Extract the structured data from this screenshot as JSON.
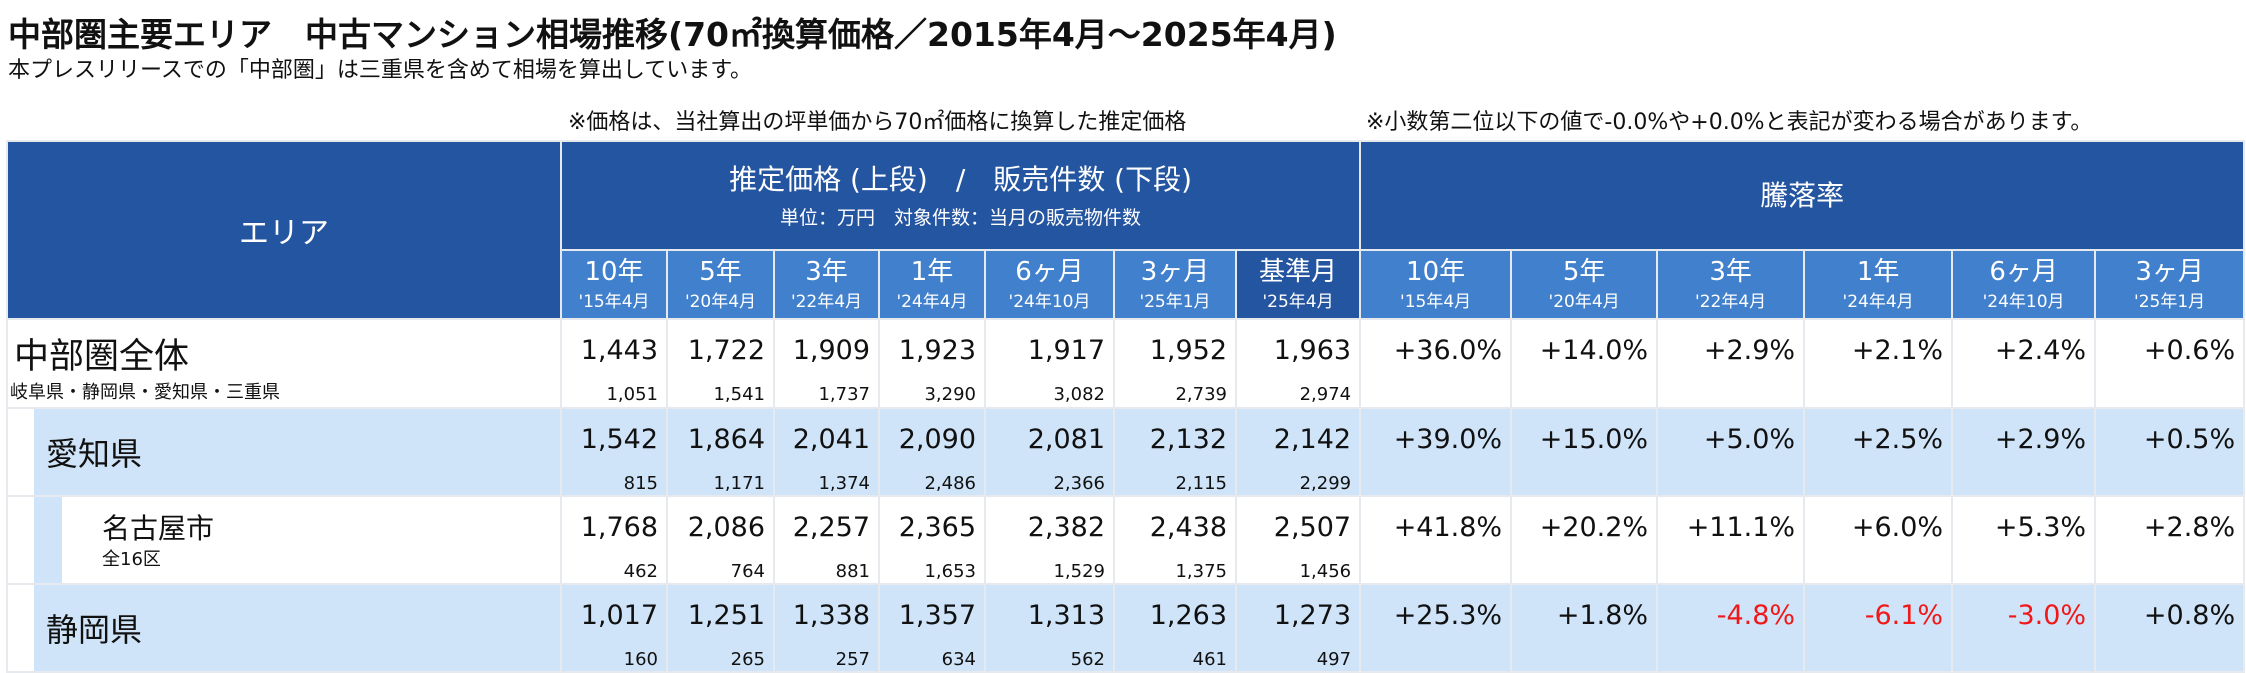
{
  "title": "中部圏主要エリア　中古マンション相場推移(70㎡換算価格／2015年4月～2025年4月)",
  "subtitle": "本プレスリリースでの「中部圏」は三重県を含めて相場を算出しています。",
  "note_left": "※価格は、当社算出の坪単価から70㎡価格に換算した推定価格",
  "note_right": "※小数第二位以下の値で-0.0%や+0.0%と表記が変わる場合があります。",
  "header": {
    "area": "エリア",
    "price_title": "推定価格 (上段)　/　販売件数 (下段)",
    "price_unit": "単位：万円　対象件数：当月の販売物件数",
    "rate_title": "騰落率",
    "price_cols": [
      {
        "label": "10年",
        "date": "'15年4月"
      },
      {
        "label": "5年",
        "date": "'20年4月"
      },
      {
        "label": "3年",
        "date": "'22年4月"
      },
      {
        "label": "1年",
        "date": "'24年4月"
      },
      {
        "label": "6ヶ月",
        "date": "'24年10月"
      },
      {
        "label": "3ヶ月",
        "date": "'25年1月"
      },
      {
        "label": "基準月",
        "date": "'25年4月"
      }
    ],
    "rate_cols": [
      {
        "label": "10年",
        "date": "'15年4月"
      },
      {
        "label": "5年",
        "date": "'20年4月"
      },
      {
        "label": "3年",
        "date": "'22年4月"
      },
      {
        "label": "1年",
        "date": "'24年4月"
      },
      {
        "label": "6ヶ月",
        "date": "'24年10月"
      },
      {
        "label": "3ヶ月",
        "date": "'25年1月"
      }
    ]
  },
  "rows": [
    {
      "name": "中部圏全体",
      "sub": "岐阜県・静岡県・愛知県・三重県",
      "prices": [
        "1,443",
        "1,722",
        "1,909",
        "1,923",
        "1,917",
        "1,952",
        "1,963"
      ],
      "counts": [
        "1,051",
        "1,541",
        "1,737",
        "3,290",
        "3,082",
        "2,739",
        "2,974"
      ],
      "rates": [
        "+36.0%",
        "+14.0%",
        "+2.9%",
        "+2.1%",
        "+2.4%",
        "+0.6%"
      ]
    },
    {
      "name": "愛知県",
      "sub": "",
      "prices": [
        "1,542",
        "1,864",
        "2,041",
        "2,090",
        "2,081",
        "2,132",
        "2,142"
      ],
      "counts": [
        "815",
        "1,171",
        "1,374",
        "2,486",
        "2,366",
        "2,115",
        "2,299"
      ],
      "rates": [
        "+39.0%",
        "+15.0%",
        "+5.0%",
        "+2.5%",
        "+2.9%",
        "+0.5%"
      ]
    },
    {
      "name": "名古屋市",
      "sub": "全16区",
      "prices": [
        "1,768",
        "2,086",
        "2,257",
        "2,365",
        "2,382",
        "2,438",
        "2,507"
      ],
      "counts": [
        "462",
        "764",
        "881",
        "1,653",
        "1,529",
        "1,375",
        "1,456"
      ],
      "rates": [
        "+41.8%",
        "+20.2%",
        "+11.1%",
        "+6.0%",
        "+5.3%",
        "+2.8%"
      ]
    },
    {
      "name": "静岡県",
      "sub": "",
      "prices": [
        "1,017",
        "1,251",
        "1,338",
        "1,357",
        "1,313",
        "1,263",
        "1,273"
      ],
      "counts": [
        "160",
        "265",
        "257",
        "634",
        "562",
        "461",
        "497"
      ],
      "rates": [
        "+25.3%",
        "+1.8%",
        "-4.8%",
        "-6.1%",
        "-3.0%",
        "+0.8%"
      ]
    }
  ],
  "colors": {
    "header_dark": "#2455a0",
    "header_mid": "#4180cc",
    "row_light": "#cfe4f8",
    "negative": "#f01818"
  }
}
